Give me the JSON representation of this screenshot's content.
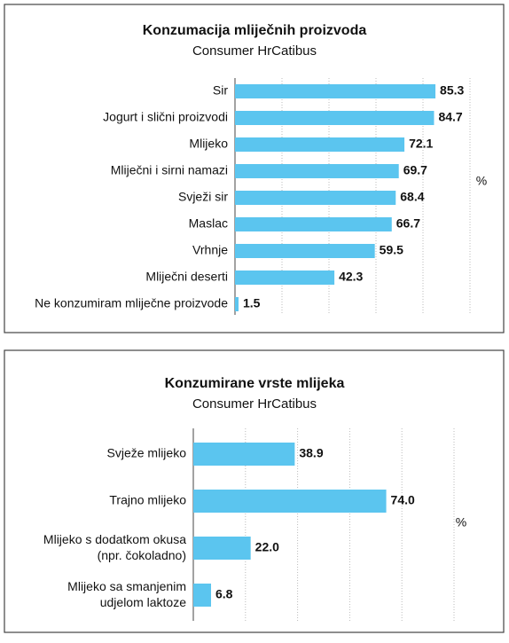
{
  "chart_data": [
    {
      "type": "bar",
      "orientation": "horizontal",
      "title": "Konzumacija mliječnih proizvoda",
      "subtitle": "Consumer HrCatibus",
      "x_label": "%",
      "categories": [
        "Sir",
        "Jogurt i slični proizvodi",
        "Mlijeko",
        "Mliječni i sirni namazi",
        "Svježi sir",
        "Maslac",
        "Vrhnje",
        "Mliječni deserti",
        "Ne konzumiram mliječne proizvode"
      ],
      "values": [
        85.3,
        84.7,
        72.1,
        69.7,
        68.4,
        66.7,
        59.5,
        42.3,
        1.5
      ],
      "color": "#5bc5ef",
      "xlim": [
        0,
        100
      ],
      "xticks": [
        0,
        20,
        40,
        60,
        80,
        100
      ],
      "grid": true
    },
    {
      "type": "bar",
      "orientation": "horizontal",
      "title": "Konzumirane vrste mlijeka",
      "subtitle": "Consumer HrCatibus",
      "x_label": "%",
      "categories": [
        "Svježe mlijeko",
        "Trajno mlijeko",
        "Mlijeko s dodatkom okusa\n(npr. čokoladno)",
        "Mlijeko sa smanjenim\nudjelom laktoze"
      ],
      "values": [
        38.9,
        74,
        22,
        6.8
      ],
      "value_labels": [
        "38.9",
        "74.0",
        "22.0",
        "6.8"
      ],
      "color": "#5bc5ef",
      "xlim": [
        0,
        100
      ],
      "xticks": [
        0,
        20,
        40,
        60,
        80,
        100
      ],
      "grid": true
    }
  ]
}
